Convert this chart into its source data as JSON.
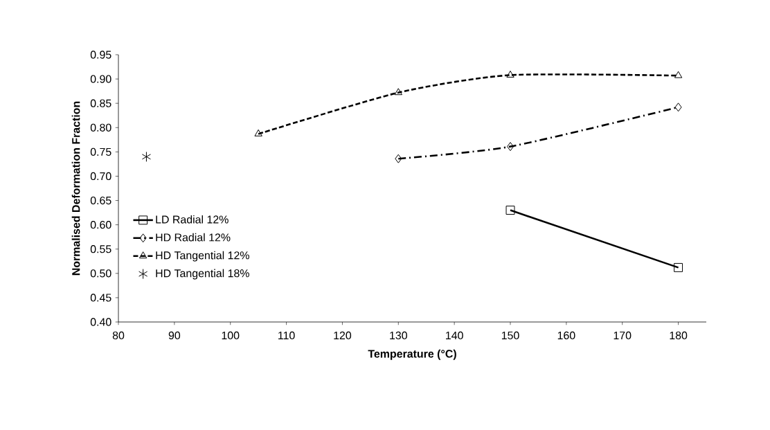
{
  "chart_data": {
    "type": "line",
    "xlabel": "Temperature (°C)",
    "ylabel": "Normalised Deformation Fraction",
    "xlim": [
      80,
      185
    ],
    "xticks": [
      80,
      90,
      100,
      110,
      120,
      130,
      140,
      150,
      160,
      170,
      180
    ],
    "ylim": [
      0.4,
      0.95
    ],
    "yticks": [
      {
        "value": 0.4,
        "label": "0.40"
      },
      {
        "value": 0.45,
        "label": "0.45"
      },
      {
        "value": 0.5,
        "label": "0.50"
      },
      {
        "value": 0.55,
        "label": "0.55"
      },
      {
        "value": 0.6,
        "label": "0.60"
      },
      {
        "value": 0.65,
        "label": "0.65"
      },
      {
        "value": 0.7,
        "label": "0.70"
      },
      {
        "value": 0.75,
        "label": "0.75"
      },
      {
        "value": 0.8,
        "label": "0.80"
      },
      {
        "value": 0.85,
        "label": "0.85"
      },
      {
        "value": 0.9,
        "label": "0.90"
      },
      {
        "value": 0.95,
        "label": "0.95"
      }
    ],
    "grid": false,
    "legend": "left",
    "series": [
      {
        "name": "LD Radial 12%",
        "color": "#000000",
        "x": [
          150,
          180
        ],
        "values": [
          0.63,
          0.512
        ],
        "marker": "square",
        "line_style": "solid"
      },
      {
        "name": "HD Radial 12%",
        "color": "#000000",
        "x": [
          130,
          150,
          180
        ],
        "values": [
          0.736,
          0.761,
          0.842
        ],
        "marker": "diamond",
        "line_style": "dashdot"
      },
      {
        "name": "HD Tangential 12%",
        "color": "#000000",
        "x": [
          105,
          130,
          150,
          180
        ],
        "values": [
          0.787,
          0.872,
          0.908,
          0.907
        ],
        "marker": "triangle",
        "line_style": "dashed"
      },
      {
        "name": "HD Tangential 18%",
        "type": "scatter",
        "color": "#000000",
        "x": [
          85
        ],
        "values": [
          0.74
        ],
        "marker": "cross"
      }
    ]
  }
}
